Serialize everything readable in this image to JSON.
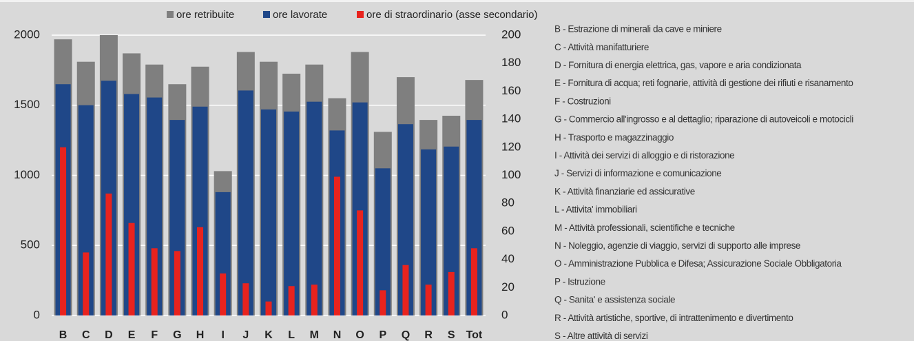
{
  "chart_data": {
    "type": "bar",
    "categories": [
      "B",
      "C",
      "D",
      "E",
      "F",
      "G",
      "H",
      "I",
      "J",
      "K",
      "L",
      "M",
      "N",
      "O",
      "P",
      "Q",
      "R",
      "S",
      "Tot"
    ],
    "series": [
      {
        "name": "ore retribuite",
        "color": "#7f7f7f",
        "values": [
          1970,
          1810,
          2000,
          1870,
          1790,
          1650,
          1775,
          1030,
          1880,
          1810,
          1725,
          1790,
          1550,
          1880,
          1310,
          1700,
          1395,
          1425,
          1680
        ]
      },
      {
        "name": "ore lavorate",
        "color": "#1f4788",
        "values": [
          1650,
          1500,
          1675,
          1580,
          1555,
          1395,
          1490,
          880,
          1605,
          1470,
          1455,
          1525,
          1320,
          1520,
          1050,
          1365,
          1185,
          1205,
          1395
        ]
      },
      {
        "name": "ore di straordinario (asse secondario)",
        "color": "#e8231e",
        "axis": "y2",
        "values": [
          120,
          45,
          87,
          66,
          48,
          46,
          63,
          30,
          23,
          10,
          21,
          22,
          99,
          75,
          18,
          36,
          22,
          31,
          48
        ]
      }
    ],
    "ylim": [
      0,
      2000
    ],
    "yticks": [
      0,
      500,
      1000,
      1500,
      2000
    ],
    "y2lim": [
      0,
      200
    ],
    "y2ticks": [
      0,
      20,
      40,
      60,
      80,
      100,
      120,
      140,
      160,
      180,
      200
    ],
    "grid": true,
    "annotations": [
      "B - Estrazione di minerali da cave e miniere",
      "C - Attività manifatturiere",
      "D - Fornitura di energia elettrica, gas, vapore e aria condizionata",
      "E - Fornitura di acqua; reti fognarie, attività di gestione dei rifiuti e risanamento",
      "F - Costruzioni",
      "G - Commercio all'ingrosso e al dettaglio; riparazione di autoveicoli e motocicli",
      "H - Trasporto e magazzinaggio",
      "I - Attività dei servizi di alloggio e di ristorazione",
      "J - Servizi di informazione e comunicazione",
      "K - Attività finanziarie ed assicurative",
      "L - Attivita' immobiliari",
      "M - Attività professionali, scientifiche e tecniche",
      "N - Noleggio, agenzie di viaggio, servizi di supporto alle imprese",
      "O - Amministrazione Pubblica e Difesa; Assicurazione Sociale Obbligatoria",
      "P - Istruzione",
      "Q - Sanita' e assistenza sociale",
      "R - Attività artistiche, sportive, di intrattenimento e divertimento",
      "S - Altre attività di servizi"
    ]
  }
}
